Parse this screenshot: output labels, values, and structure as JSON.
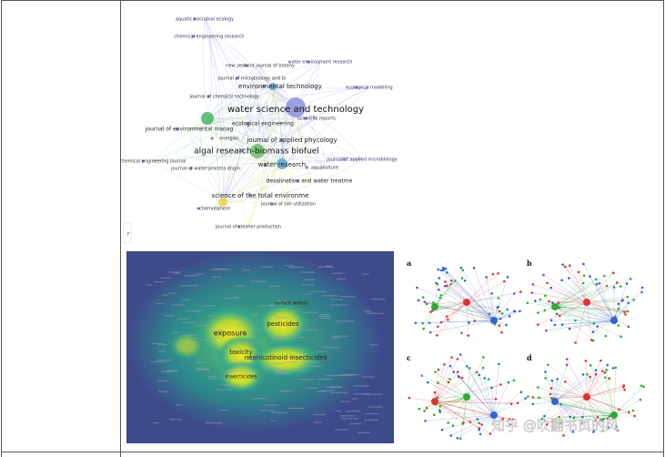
{
  "network_top": {
    "labels": [
      "aquatic microbial ecology",
      "chemical engineering research",
      "water environment research",
      "new zealand journal of botany",
      "journal of microbiology and bi",
      "environmental technology",
      "ecological modelling",
      "journal of chemical technology",
      "water science and technology",
      "scientific reports",
      "ecological engineering",
      "journal of environmental manag",
      "journal of applied phycology",
      "energies",
      "algal research-biomass biofuel",
      "chemical engineering journal",
      "journal of applied microbiology",
      "water research",
      "journal of water process engin",
      "aquaculture",
      "desalination and water treatme",
      "science of the total environme",
      "journal of soil utilization",
      "chemosphere",
      "journal of cleaner production",
      "r"
    ]
  },
  "density_map": {
    "labels": [
      "surface waters",
      "pesticides",
      "exposure",
      "toxicity",
      "neonicotinoid insecticides",
      "insecticides"
    ]
  },
  "panels": {
    "labels": [
      "a",
      "b",
      "c",
      "d"
    ]
  },
  "watermark": "知乎 @吹翻书页的风"
}
